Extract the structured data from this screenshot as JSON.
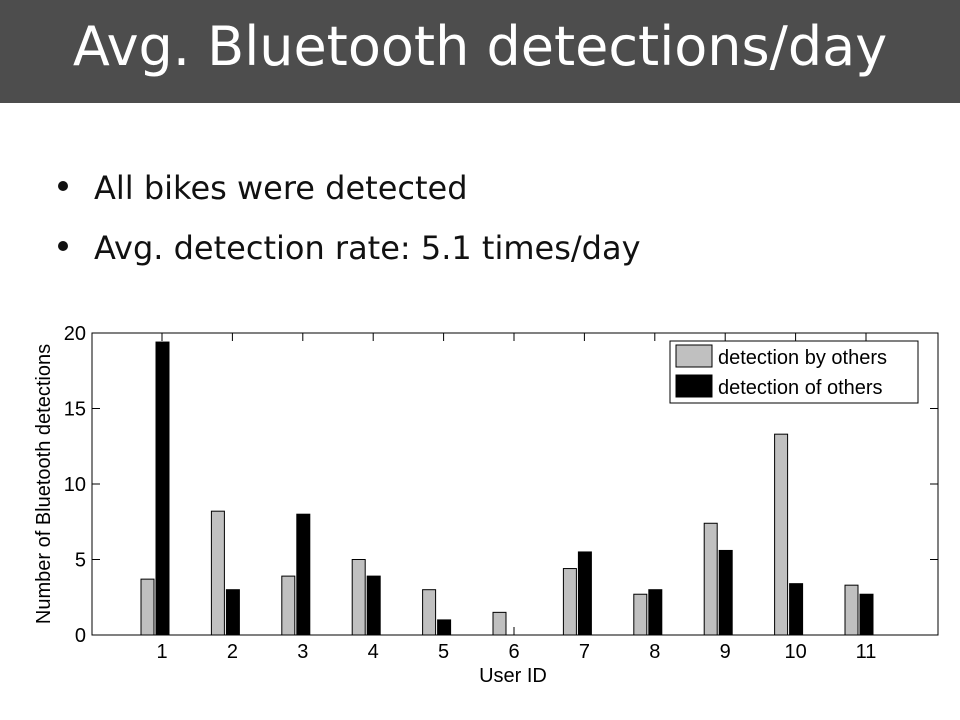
{
  "slide": {
    "title": "Avg. Bluetooth detections/day",
    "bullets": [
      "All bikes were detected",
      "Avg. detection rate: 5.1 times/day"
    ]
  },
  "chart_data": {
    "type": "bar",
    "title": "",
    "xlabel": "User ID",
    "ylabel": "Number of Bluetooth detections",
    "categories": [
      "1",
      "2",
      "3",
      "4",
      "5",
      "6",
      "7",
      "8",
      "9",
      "10",
      "11"
    ],
    "series": [
      {
        "name": "detection by others",
        "color": "#c0c0c0",
        "values": [
          3.7,
          8.2,
          3.9,
          5.0,
          3.0,
          1.5,
          4.4,
          2.7,
          7.4,
          13.3,
          3.3
        ]
      },
      {
        "name": "detection of others",
        "color": "#000000",
        "values": [
          19.4,
          3.0,
          8.0,
          3.9,
          1.0,
          0,
          5.5,
          3.0,
          5.6,
          3.4,
          2.7
        ]
      }
    ],
    "ylim": [
      0,
      20
    ],
    "yticks": [
      "0",
      "5",
      "10",
      "15",
      "20"
    ],
    "legend": "top-right",
    "grid": false
  }
}
